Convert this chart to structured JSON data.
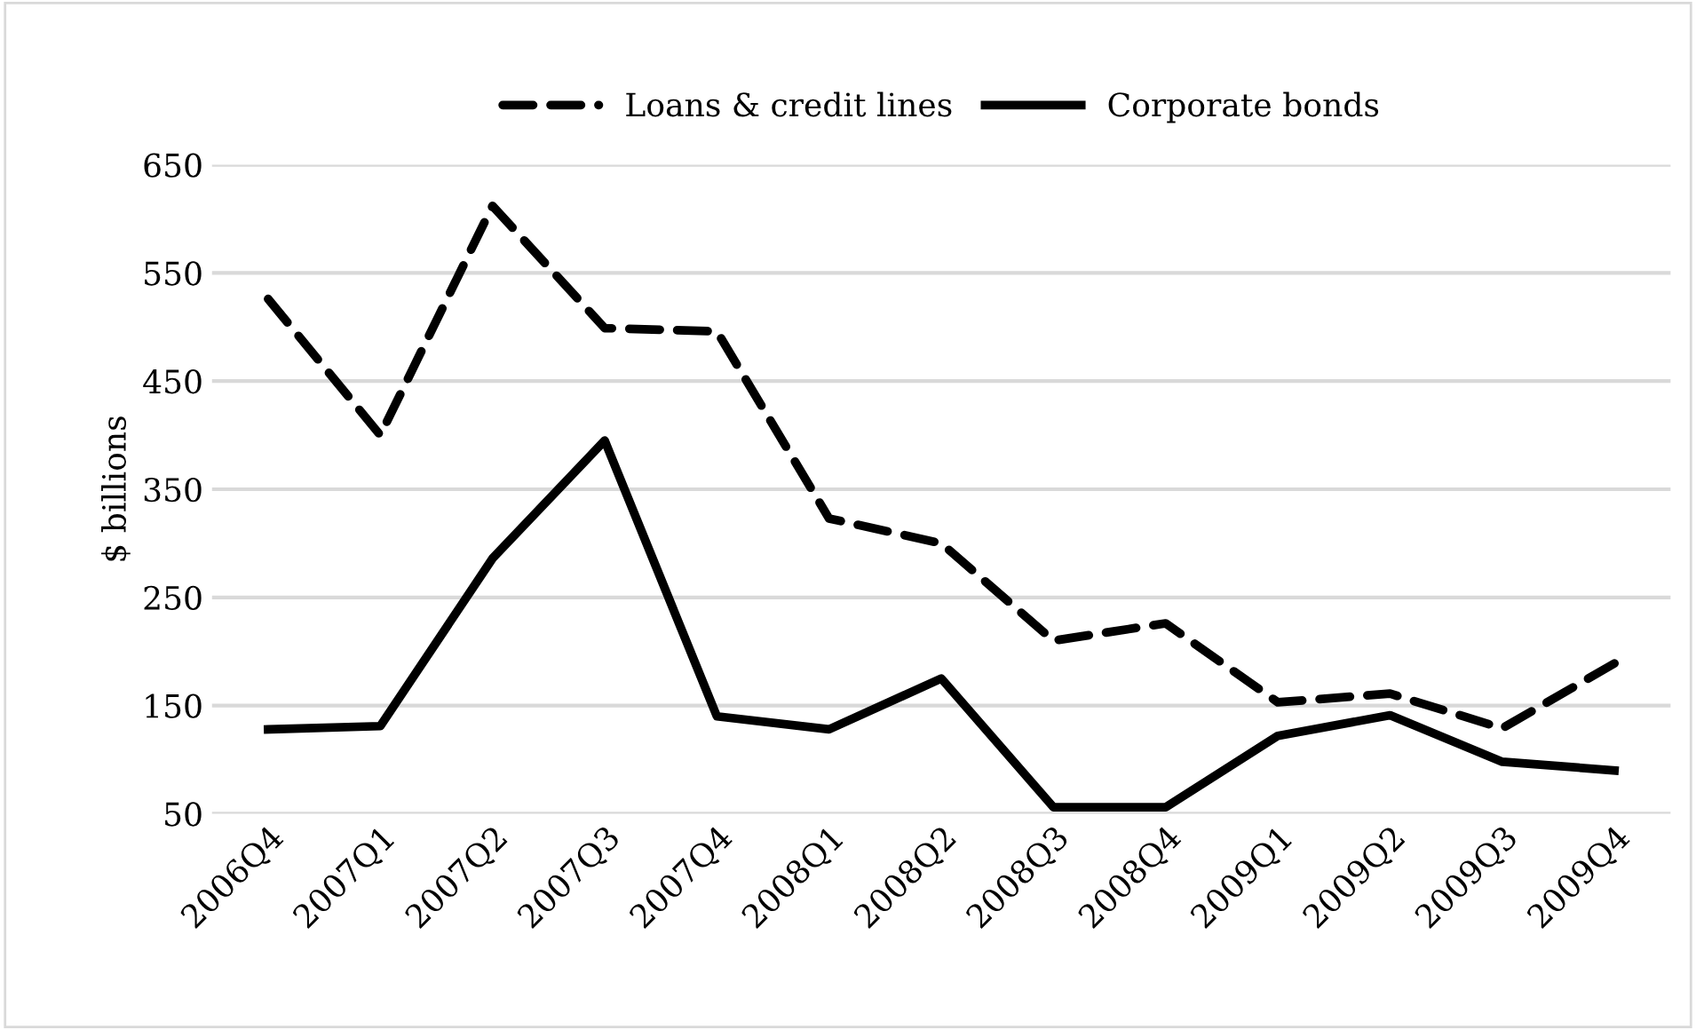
{
  "chart_data": {
    "type": "line",
    "ylabel": "$ billions",
    "categories": [
      "2006Q4",
      "2007Q1",
      "2007Q2",
      "2007Q3",
      "2007Q4",
      "2008Q1",
      "2008Q2",
      "2008Q3",
      "2008Q4",
      "2009Q1",
      "2009Q2",
      "2009Q3",
      "2009Q4"
    ],
    "series": [
      {
        "name": "Loans & credit lines",
        "color": "#000000",
        "line_style": "dashed",
        "values": [
          526,
          400,
          612,
          499,
          496,
          323,
          300,
          210,
          226,
          153,
          161,
          129,
          189
        ]
      },
      {
        "name": "Corporate bonds",
        "color": "#000000",
        "line_style": "solid",
        "values": [
          128,
          131,
          286,
          395,
          140,
          128,
          175,
          56,
          56,
          122,
          141,
          98,
          90
        ]
      }
    ],
    "ylim": [
      50,
      650
    ],
    "yticks": [
      50,
      150,
      250,
      350,
      450,
      550,
      650
    ],
    "grid": "y",
    "legend": "top",
    "marker": "none"
  }
}
